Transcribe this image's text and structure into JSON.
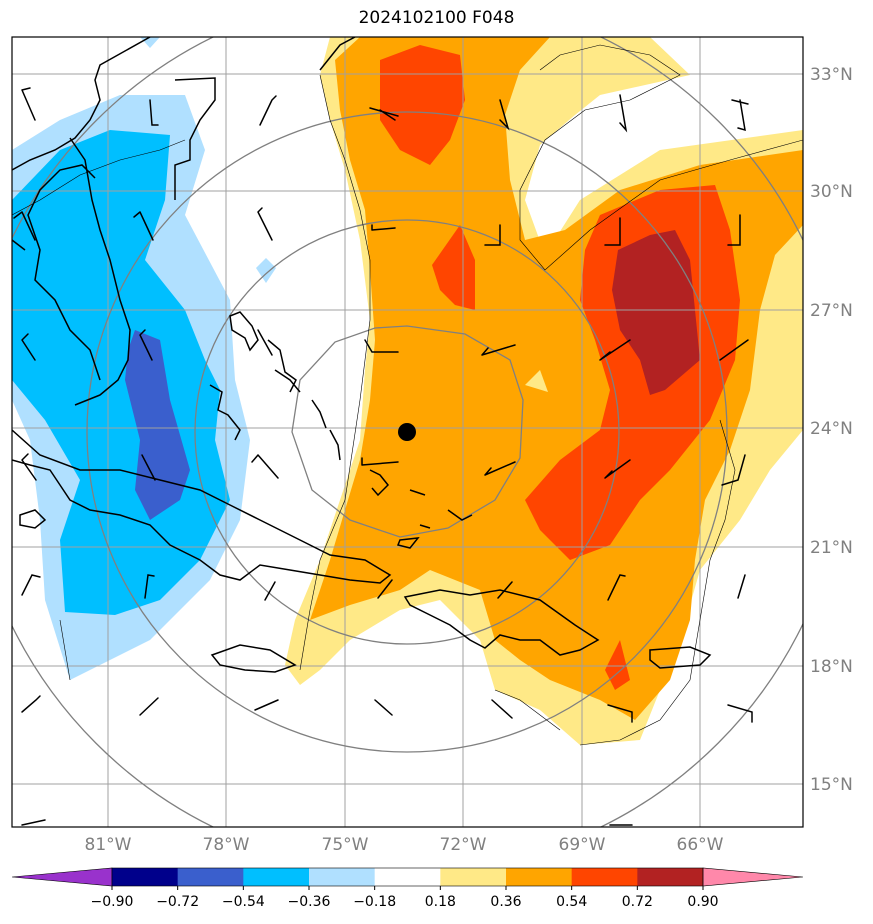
{
  "title": "2024102100 F048",
  "map": {
    "lon_ticks": [
      "81°W",
      "78°W",
      "75°W",
      "72°W",
      "69°W",
      "66°W"
    ],
    "lat_ticks": [
      "33°N",
      "30°N",
      "27°N",
      "24°N",
      "21°N",
      "18°N",
      "15°N"
    ],
    "center_marker": "storm-center"
  },
  "colorbar": {
    "labels": [
      "−0.90",
      "−0.72",
      "−0.54",
      "−0.36",
      "−0.18",
      "0.18",
      "0.36",
      "0.54",
      "0.72",
      "0.90"
    ],
    "colors": [
      "#9932cc",
      "#00008b",
      "#3a5fcd",
      "#00bfff",
      "#b0e0ff",
      "#ffffff",
      "#ffe987",
      "#ffa500",
      "#ff4500",
      "#b22222",
      "#ff88aa"
    ]
  }
}
